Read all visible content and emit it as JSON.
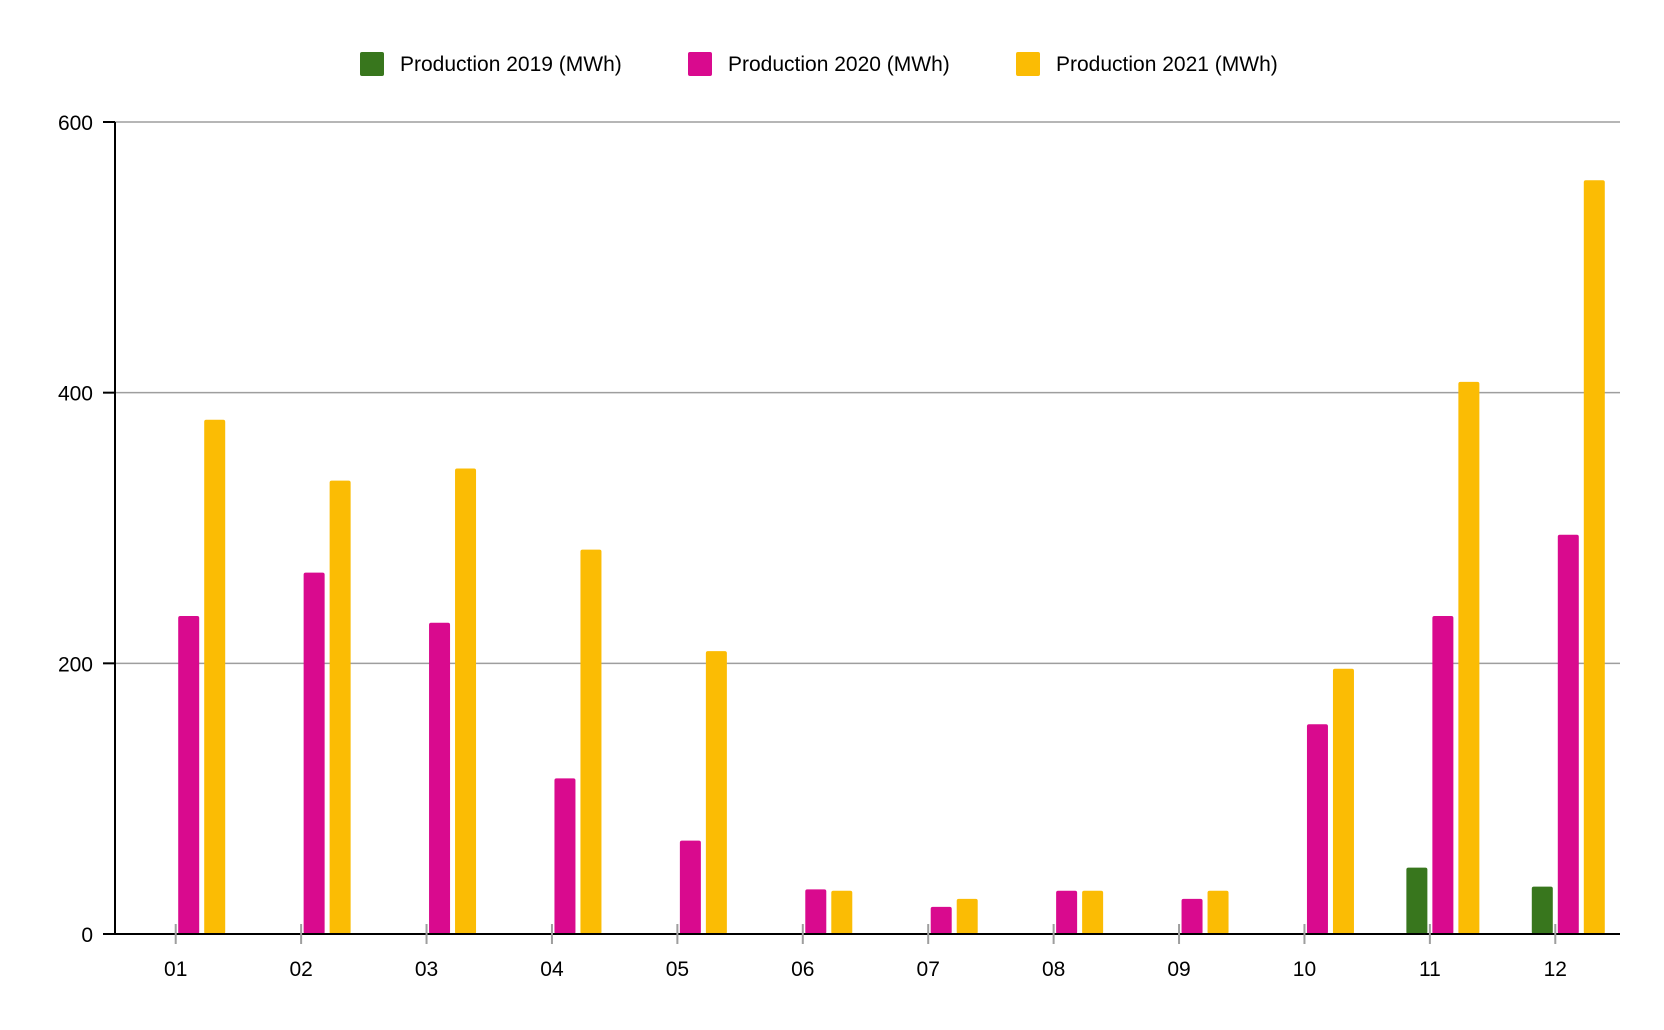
{
  "chart_data": {
    "type": "bar",
    "categories": [
      "01",
      "02",
      "03",
      "04",
      "05",
      "06",
      "07",
      "08",
      "09",
      "10",
      "11",
      "12"
    ],
    "series": [
      {
        "name": "Production 2019 (MWh)",
        "color": "#38761d",
        "values": [
          null,
          null,
          null,
          null,
          null,
          null,
          null,
          null,
          null,
          null,
          49,
          35
        ]
      },
      {
        "name": "Production 2020 (MWh)",
        "color": "#d90a8e",
        "values": [
          235,
          267,
          230,
          115,
          69,
          33,
          20,
          32,
          26,
          155,
          235,
          295
        ]
      },
      {
        "name": "Production 2021 (MWh)",
        "color": "#fbbc04",
        "values": [
          380,
          335,
          344,
          284,
          209,
          32,
          26,
          32,
          32,
          196,
          408,
          557
        ]
      }
    ],
    "y_ticks": [
      "0",
      "200",
      "400",
      "600"
    ],
    "ylim": [
      0,
      600
    ],
    "grid": true,
    "legend_position": "top-center",
    "title": "",
    "xlabel": "",
    "ylabel": ""
  }
}
